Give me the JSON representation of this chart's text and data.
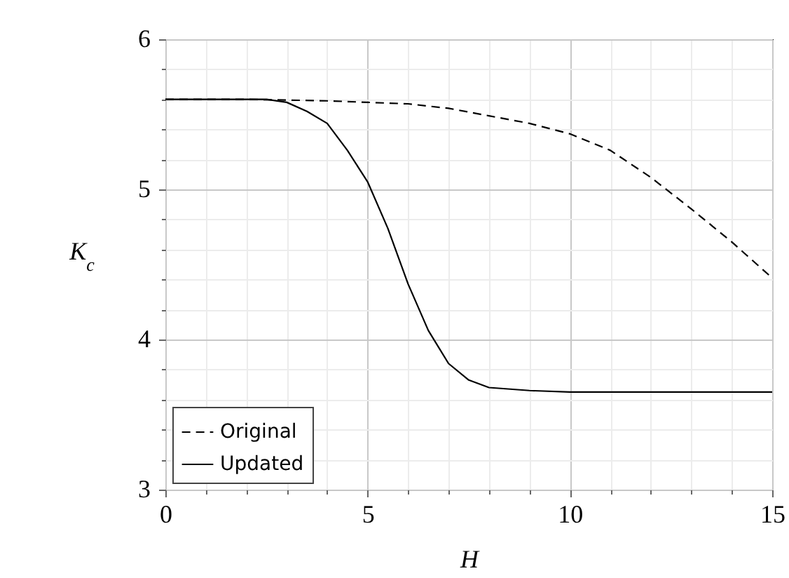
{
  "chart_data": {
    "type": "line",
    "xlabel": "H",
    "ylabel": "K$_{c}$",
    "xlim": [
      0,
      15
    ],
    "ylim": [
      3,
      6
    ],
    "xticks": [
      0,
      {
        "value": 1,
        "label": null
      },
      {
        "value": 2,
        "label": null
      },
      {
        "value": 3,
        "label": null
      },
      {
        "value": 4,
        "label": null
      },
      5,
      {
        "value": 6,
        "label": null
      },
      {
        "value": 7,
        "label": null
      },
      {
        "value": 8,
        "label": null
      },
      {
        "value": 9,
        "label": null
      },
      10,
      {
        "value": 11,
        "label": null
      },
      {
        "value": 12,
        "label": null
      },
      {
        "value": 13,
        "label": null
      },
      {
        "value": 14,
        "label": null
      },
      15
    ],
    "yticks": [
      3,
      {
        "value": 3.2,
        "label": null
      },
      {
        "value": 3.4,
        "label": null
      },
      {
        "value": 3.6,
        "label": null
      },
      {
        "value": 3.8,
        "label": null
      },
      4,
      {
        "value": 4.2,
        "label": null
      },
      {
        "value": 4.4,
        "label": null
      },
      {
        "value": 4.6,
        "label": null
      },
      {
        "value": 4.8,
        "label": null
      },
      5,
      {
        "value": 5.2,
        "label": null
      },
      {
        "value": 5.4,
        "label": null
      },
      {
        "value": 5.6,
        "label": null
      },
      {
        "value": 5.8,
        "label": null
      },
      6
    ],
    "grid": true,
    "legend": "bottom left",
    "marker": "none",
    "series": [
      {
        "name": "Original",
        "color": "#000000",
        "line_style": "dashed",
        "x": [
          0,
          2,
          4,
          5,
          6,
          7,
          8,
          9,
          10,
          11,
          12,
          13,
          14,
          15
        ],
        "values": [
          5.6,
          5.6,
          5.59,
          5.58,
          5.57,
          5.54,
          5.49,
          5.44,
          5.37,
          5.26,
          5.08,
          4.87,
          4.65,
          4.41
        ]
      },
      {
        "name": "Updated",
        "color": "#000000",
        "line_style": "solid",
        "x": [
          0,
          2,
          2.5,
          3,
          3.5,
          4,
          4.5,
          5,
          5.5,
          6,
          6.5,
          7,
          7.5,
          8,
          9,
          10,
          15
        ],
        "values": [
          5.6,
          5.6,
          5.6,
          5.58,
          5.52,
          5.44,
          5.26,
          5.05,
          4.74,
          4.37,
          4.06,
          3.84,
          3.73,
          3.68,
          3.66,
          3.65,
          3.65
        ]
      }
    ]
  }
}
